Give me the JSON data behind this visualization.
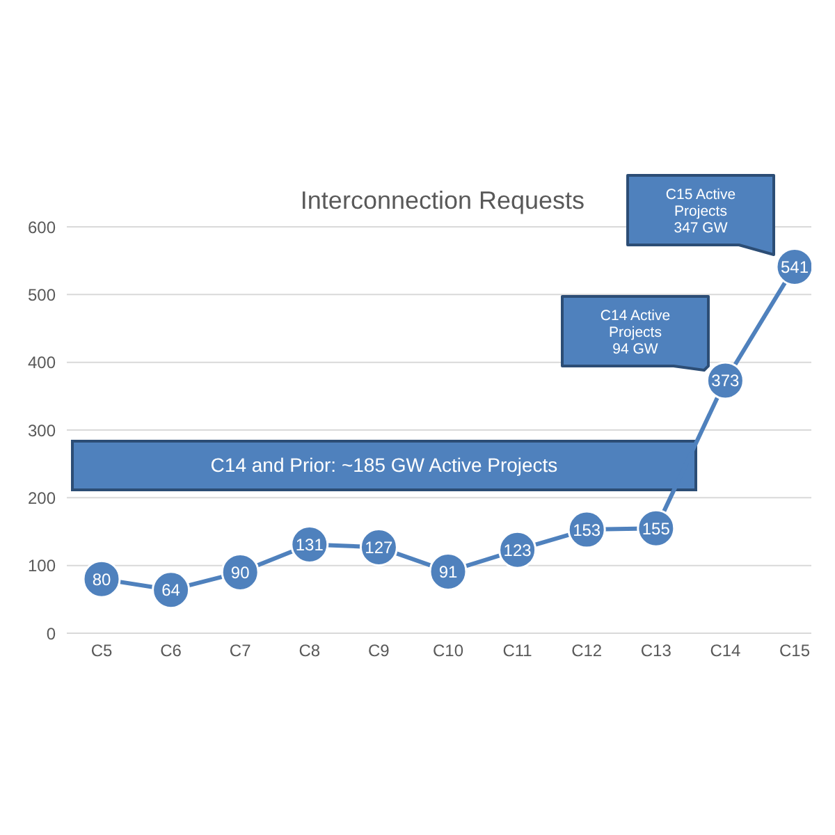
{
  "chart_data": {
    "type": "line",
    "title": "Interconnection Requests",
    "categories": [
      "C5",
      "C6",
      "C7",
      "C8",
      "C9",
      "C10",
      "C11",
      "C12",
      "C13",
      "C14",
      "C15"
    ],
    "series": [
      {
        "color": "#4f81bd",
        "values": [
          80,
          64,
          90,
          131,
          127,
          91,
          123,
          153,
          155,
          373,
          541
        ]
      }
    ],
    "ylim": [
      0,
      600
    ],
    "yticks": [
      0,
      100,
      200,
      300,
      400,
      500,
      600
    ],
    "grid": "y",
    "marker": "circle",
    "line_style": "solid",
    "data_labels": true,
    "annotations": [
      "C14 and Prior: ~185 GW Active Projects",
      "C14 Active Projects 94 GW",
      "C15 Active Projects 347 GW"
    ]
  }
}
